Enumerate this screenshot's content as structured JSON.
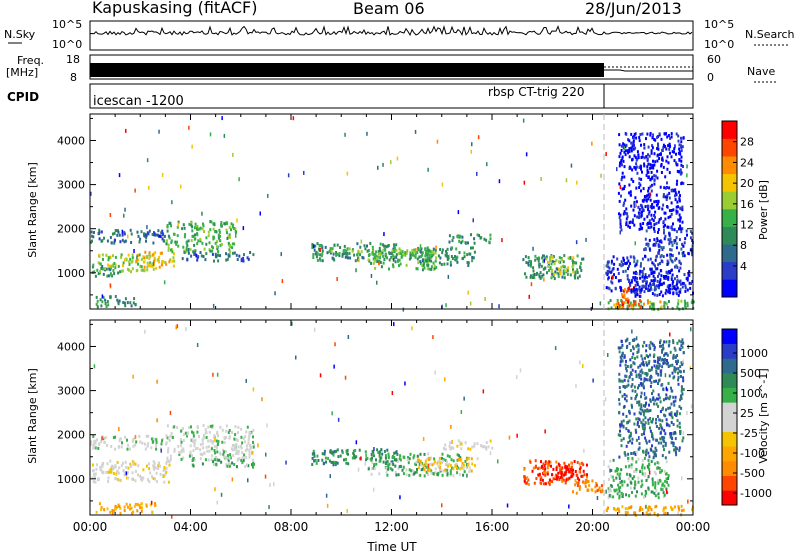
{
  "header": {
    "station": "Kapuskasing (fitACF)",
    "beam": "Beam 06",
    "date": "28/Jun/2013"
  },
  "noise_panel": {
    "left_label": "N.Sky",
    "left_ticks": [
      "10^5",
      "10^0"
    ],
    "right_label": "N.Search",
    "right_ticks": [
      "10^5",
      "10^0"
    ]
  },
  "freq_panel": {
    "left_label_1": "Freq.",
    "left_label_2": "[MHz]",
    "left_ticks": [
      "18",
      "8"
    ],
    "right_label": "Nave",
    "right_ticks": [
      "60",
      "0"
    ]
  },
  "cpid_panel": {
    "label": "CPID",
    "program_1": "icescan -1200",
    "program_2": "rbsp CT-trig 220"
  },
  "chart_data": [
    {
      "type": "heatmap",
      "title": "",
      "xlabel": "",
      "ylabel": "Slant Range [km]",
      "x_ticks": [
        "00:00",
        "04:00",
        "08:00",
        "12:00",
        "16:00",
        "20:00",
        "00:00"
      ],
      "y_ticks": [
        "1000",
        "2000",
        "3000",
        "4000"
      ],
      "xlim_hours": [
        0,
        24
      ],
      "ylim_km": [
        180,
        4600
      ],
      "colorbar": {
        "label": "Power [dB]",
        "ticks": [
          "28",
          "24",
          "20",
          "16",
          "12",
          "8",
          "4"
        ],
        "colors": [
          "#0000ff",
          "#2a3cc8",
          "#2e6a8e",
          "#2e8b57",
          "#37b04a",
          "#9acd32",
          "#f5c400",
          "#ff8c00",
          "#ff4500",
          "#ff0000"
        ]
      },
      "regions": [
        {
          "h": [
            0.0,
            1.2
          ],
          "r": [
            950,
            1250
          ],
          "level": 3
        },
        {
          "h": [
            0.3,
            2.6
          ],
          "r": [
            1050,
            1450
          ],
          "level": 5
        },
        {
          "h": [
            1.8,
            3.4
          ],
          "r": [
            1150,
            1500
          ],
          "level": 6
        },
        {
          "h": [
            3.0,
            5.8
          ],
          "r": [
            1500,
            2200
          ],
          "level": 4
        },
        {
          "h": [
            0.0,
            3.0
          ],
          "r": [
            1700,
            2000
          ],
          "level": 2
        },
        {
          "h": [
            0.2,
            1.8
          ],
          "r": [
            250,
            500
          ],
          "level": 3
        },
        {
          "h": [
            2.0,
            3.0
          ],
          "r": [
            1850,
            1950
          ],
          "level": 1
        },
        {
          "h": [
            3.6,
            6.5
          ],
          "r": [
            1300,
            1500
          ],
          "level": 2
        },
        {
          "h": [
            8.8,
            12.2
          ],
          "r": [
            1300,
            1700
          ],
          "level": 3
        },
        {
          "h": [
            9.0,
            13.5
          ],
          "r": [
            1450,
            1600
          ],
          "level": 4
        },
        {
          "h": [
            11.0,
            13.8
          ],
          "r": [
            1100,
            1550
          ],
          "level": 4
        },
        {
          "h": [
            13.0,
            15.3
          ],
          "r": [
            1200,
            1600
          ],
          "level": 3
        },
        {
          "h": [
            14.2,
            16.0
          ],
          "r": [
            1700,
            1900
          ],
          "level": 3
        },
        {
          "h": [
            17.2,
            19.6
          ],
          "r": [
            900,
            1450
          ],
          "level": 3
        },
        {
          "h": [
            18.0,
            19.2
          ],
          "r": [
            1000,
            1400
          ],
          "level": 5
        },
        {
          "h": [
            20.5,
            24.0
          ],
          "r": [
            200,
            420
          ],
          "level": 4
        },
        {
          "h": [
            20.8,
            22.8
          ],
          "r": [
            250,
            380
          ],
          "level": 7
        },
        {
          "h": [
            21.0,
            22.0
          ],
          "r": [
            300,
            700
          ],
          "level": 8
        },
        {
          "h": [
            20.5,
            23.5
          ],
          "r": [
            600,
            1400
          ],
          "level": 1
        },
        {
          "h": [
            21.5,
            24.0
          ],
          "r": [
            500,
            1100
          ],
          "level": 0
        },
        {
          "h": [
            22.0,
            24.0
          ],
          "r": [
            1400,
            2000
          ],
          "level": 1
        },
        {
          "h": [
            21.0,
            23.6
          ],
          "r": [
            2000,
            4200
          ],
          "level": 0
        }
      ]
    },
    {
      "type": "heatmap",
      "title": "",
      "xlabel": "Time UT",
      "ylabel": "Slant Range [km]",
      "x_ticks": [
        "00:00",
        "04:00",
        "08:00",
        "12:00",
        "16:00",
        "20:00",
        "00:00"
      ],
      "y_ticks": [
        "1000",
        "2000",
        "3000",
        "4000"
      ],
      "xlim_hours": [
        0,
        24
      ],
      "ylim_km": [
        180,
        4600
      ],
      "colorbar": {
        "label": "Velocity [m s^-1]",
        "ticks": [
          "1000",
          "500",
          "100",
          "25",
          "-25",
          "-100",
          "-500",
          "-1000"
        ],
        "colors": [
          "#ff0000",
          "#ff4500",
          "#ff8c00",
          "#ffa500",
          "#f5c400",
          "#d3d3d3",
          "#d3d3d3",
          "#37b04a",
          "#2e8b57",
          "#2e6a8e",
          "#2a3cc8",
          "#0000ff"
        ]
      },
      "regions": [
        {
          "h": [
            0.0,
            3.2
          ],
          "r": [
            950,
            1450
          ],
          "level": 5
        },
        {
          "h": [
            3.0,
            6.5
          ],
          "r": [
            1450,
            2250
          ],
          "level": 6
        },
        {
          "h": [
            0.0,
            3.0
          ],
          "r": [
            1700,
            2000
          ],
          "level": 6
        },
        {
          "h": [
            0.2,
            2.6
          ],
          "r": [
            250,
            500
          ],
          "level": 3
        },
        {
          "h": [
            4.0,
            6.5
          ],
          "r": [
            1300,
            1500
          ],
          "level": 7
        },
        {
          "h": [
            8.8,
            12.2
          ],
          "r": [
            1350,
            1700
          ],
          "level": 8
        },
        {
          "h": [
            11.0,
            15.0
          ],
          "r": [
            1100,
            1600
          ],
          "level": 7
        },
        {
          "h": [
            13.0,
            15.5
          ],
          "r": [
            1200,
            1500
          ],
          "level": 4
        },
        {
          "h": [
            14.0,
            16.0
          ],
          "r": [
            1700,
            1900
          ],
          "level": 5
        },
        {
          "h": [
            17.2,
            19.8
          ],
          "r": [
            900,
            1450
          ],
          "level": 1
        },
        {
          "h": [
            17.8,
            19.4
          ],
          "r": [
            1000,
            1350
          ],
          "level": 0
        },
        {
          "h": [
            19.0,
            20.4
          ],
          "r": [
            700,
            1000
          ],
          "level": 2
        },
        {
          "h": [
            20.5,
            24.0
          ],
          "r": [
            200,
            420
          ],
          "level": 3
        },
        {
          "h": [
            20.6,
            23.0
          ],
          "r": [
            600,
            1500
          ],
          "level": 7
        },
        {
          "h": [
            21.0,
            23.6
          ],
          "r": [
            1500,
            4200
          ],
          "level": 9
        }
      ]
    }
  ]
}
